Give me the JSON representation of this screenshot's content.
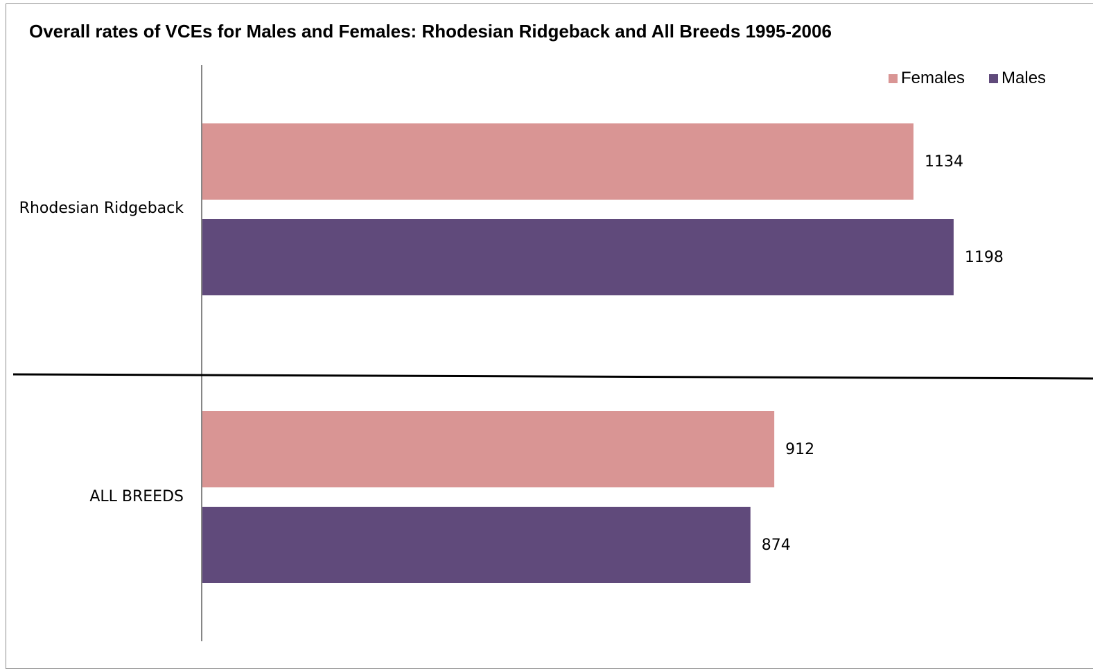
{
  "chart_data": {
    "type": "bar",
    "orientation": "horizontal",
    "title": "Overall rates of VCEs for Males and Females: Rhodesian Ridgeback and All Breeds 1995-2006",
    "categories": [
      "Rhodesian Ridgeback",
      "ALL BREEDS"
    ],
    "series": [
      {
        "name": "Females",
        "color": "#d99594",
        "values": [
          1134,
          912
        ]
      },
      {
        "name": "Males",
        "color": "#604a7b",
        "values": [
          1198,
          874
        ]
      }
    ],
    "xlim": [
      0,
      1400
    ],
    "grid": false,
    "legend_position": "top-right",
    "data_labels": true,
    "separator_line": true
  }
}
